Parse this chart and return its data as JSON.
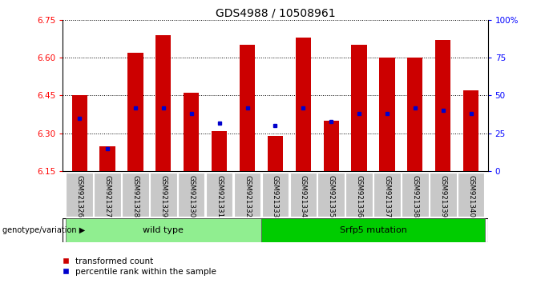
{
  "title": "GDS4988 / 10508961",
  "samples": [
    "GSM921326",
    "GSM921327",
    "GSM921328",
    "GSM921329",
    "GSM921330",
    "GSM921331",
    "GSM921332",
    "GSM921333",
    "GSM921334",
    "GSM921335",
    "GSM921336",
    "GSM921337",
    "GSM921338",
    "GSM921339",
    "GSM921340"
  ],
  "red_values": [
    6.45,
    6.25,
    6.62,
    6.69,
    6.46,
    6.31,
    6.65,
    6.29,
    6.68,
    6.35,
    6.65,
    6.6,
    6.6,
    6.67,
    6.47
  ],
  "blue_pct": [
    35,
    15,
    42,
    42,
    38,
    32,
    42,
    30,
    42,
    33,
    38,
    38,
    42,
    40,
    38
  ],
  "ymin": 6.15,
  "ymax": 6.75,
  "yticks": [
    6.15,
    6.3,
    6.45,
    6.6,
    6.75
  ],
  "right_yticks": [
    0,
    25,
    50,
    75,
    100
  ],
  "right_ytick_labels": [
    "0",
    "25",
    "50",
    "75",
    "100%"
  ],
  "bar_color": "#cc0000",
  "dot_color": "#0000cc",
  "group1_label": "wild type",
  "group2_label": "Srfp5 mutation",
  "group1_indices": [
    0,
    1,
    2,
    3,
    4,
    5,
    6
  ],
  "group2_indices": [
    7,
    8,
    9,
    10,
    11,
    12,
    13,
    14
  ],
  "group1_color": "#90ee90",
  "group2_color": "#00cc00",
  "genotype_label": "genotype/variation",
  "legend_red": "transformed count",
  "legend_blue": "percentile rank within the sample",
  "bar_width": 0.55,
  "title_fontsize": 10
}
